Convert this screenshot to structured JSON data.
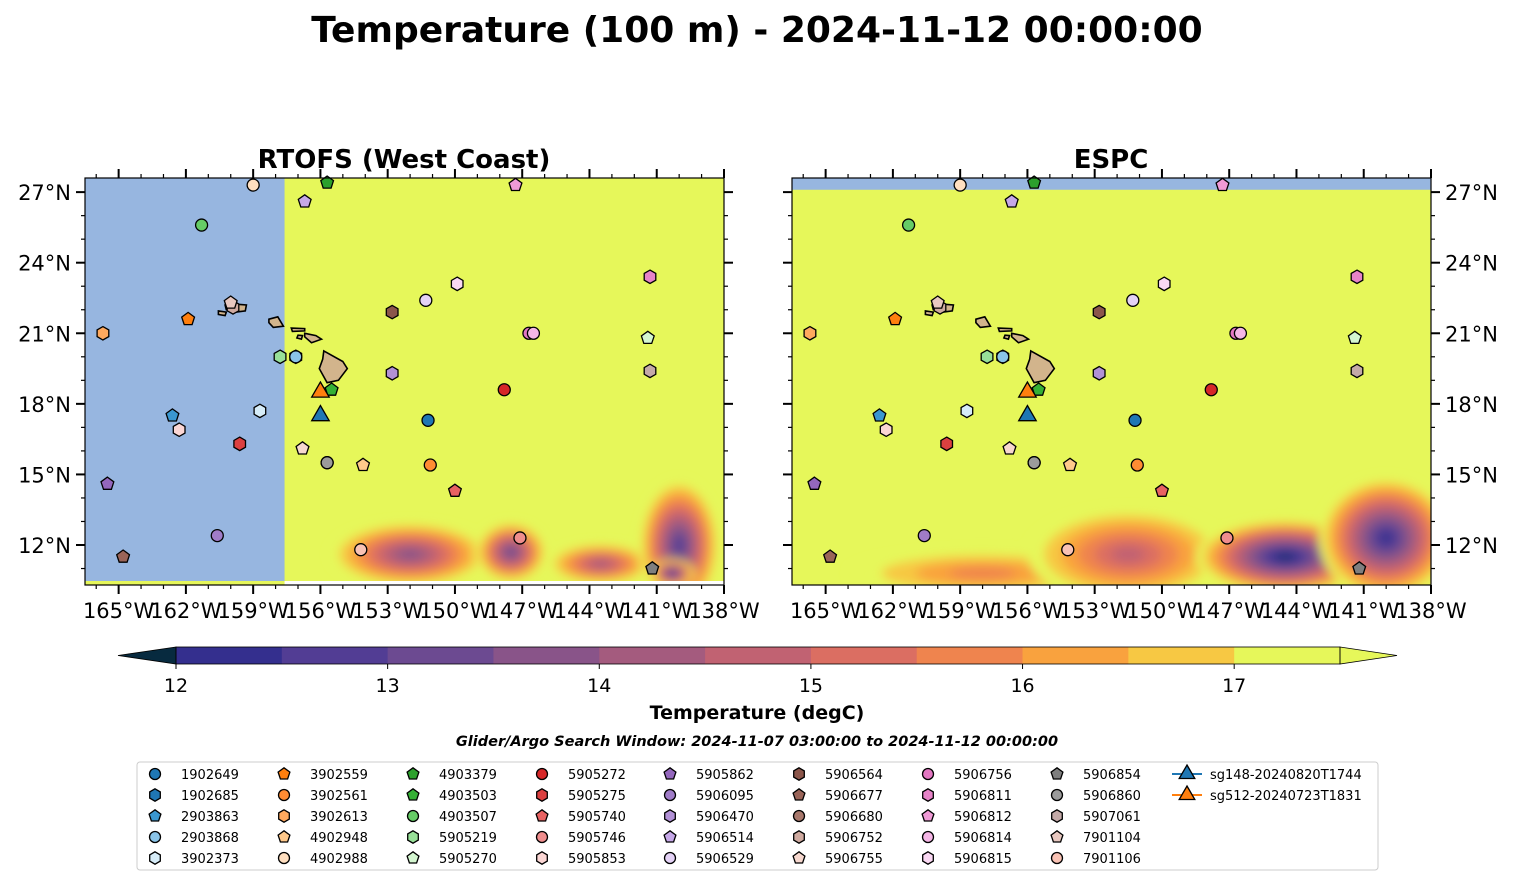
{
  "title": "Temperature (100 m) - 2024-11-12 00:00:00",
  "colormap": [
    "#072a3f",
    "#14306f",
    "#342f8e",
    "#523d94",
    "#6c4a91",
    "#895489",
    "#a45b7e",
    "#c16272",
    "#db6e62",
    "#ef844e",
    "#f9a23e",
    "#f7c843",
    "#e6f75a"
  ],
  "colors": {
    "land_mask": "#97b6e0",
    "land": "#d2b48c",
    "frame": "#000000"
  },
  "chart_data": [
    {
      "type": "heatmap",
      "title": "RTOFS (West Coast)",
      "xlim": [
        -166.5,
        -138
      ],
      "ylim": [
        10.3,
        27.6
      ],
      "xticks": [
        -165,
        -162,
        -159,
        -156,
        -153,
        -150,
        -147,
        -144,
        -141,
        -138
      ],
      "yticks": [
        12,
        15,
        18,
        21,
        24,
        27
      ],
      "xtick_labels": [
        "165°W",
        "162°W",
        "159°W",
        "156°W",
        "153°W",
        "150°W",
        "147°W",
        "144°W",
        "141°W",
        "138°W"
      ],
      "ytick_labels": [
        "12°N",
        "15°N",
        "18°N",
        "21°N",
        "24°N",
        "27°N"
      ],
      "yaxis_side": "left",
      "masked_west_of_lon": -157.6,
      "background_value": 17.8,
      "cold_patches": [
        {
          "lon": -152.0,
          "lat": 11.6,
          "rx": 3.6,
          "ry": 1.4,
          "value": 14.2
        },
        {
          "lon": -147.5,
          "lat": 11.7,
          "rx": 1.6,
          "ry": 1.3,
          "value": 13.6
        },
        {
          "lon": -143.5,
          "lat": 11.2,
          "rx": 2.4,
          "ry": 0.9,
          "value": 14.5
        },
        {
          "lon": -140.0,
          "lat": 12.0,
          "rx": 1.8,
          "ry": 2.8,
          "value": 13.0
        },
        {
          "lon": -140.3,
          "lat": 10.8,
          "rx": 1.0,
          "ry": 0.6,
          "value": 12.3
        }
      ]
    },
    {
      "type": "heatmap",
      "title": "ESPC",
      "xlim": [
        -166.5,
        -138
      ],
      "ylim": [
        10.3,
        27.6
      ],
      "xticks": [
        -165,
        -162,
        -159,
        -156,
        -153,
        -150,
        -147,
        -144,
        -141,
        -138
      ],
      "yticks": [
        12,
        15,
        18,
        21,
        24,
        27
      ],
      "xtick_labels": [
        "165°W",
        "162°W",
        "159°W",
        "156°W",
        "153°W",
        "150°W",
        "147°W",
        "144°W",
        "141°W",
        "138°W"
      ],
      "ytick_labels": [
        "12°N",
        "15°N",
        "18°N",
        "21°N",
        "24°N",
        "27°N"
      ],
      "yaxis_side": "right",
      "masked_north_of_lat": 27.1,
      "background_value": 17.8,
      "cold_patches": [
        {
          "lon": -158.0,
          "lat": 10.8,
          "rx": 6.0,
          "ry": 1.0,
          "value": 15.8
        },
        {
          "lon": -151.5,
          "lat": 11.6,
          "rx": 4.5,
          "ry": 2.0,
          "value": 14.8
        },
        {
          "lon": -144.5,
          "lat": 11.5,
          "rx": 4.0,
          "ry": 1.6,
          "value": 12.2
        },
        {
          "lon": -140.0,
          "lat": 12.3,
          "rx": 3.0,
          "ry": 2.6,
          "value": 12.6
        }
      ]
    }
  ],
  "floats": [
    {
      "id": "1902649",
      "marker": "circle",
      "color": "#1f77b4",
      "lon": -151.2,
      "lat": 17.3
    },
    {
      "id": "1902685",
      "marker": "hexagon",
      "color": "#1f77b4",
      "lon": -157.1,
      "lat": 20.0
    },
    {
      "id": "2903863",
      "marker": "pentagon",
      "color": "#3a97d0",
      "lon": -162.6,
      "lat": 17.5
    },
    {
      "id": "2903868",
      "marker": "circle",
      "color": "#8ac4e8",
      "lon": -157.1,
      "lat": 20.0
    },
    {
      "id": "3902373",
      "marker": "hexagon",
      "color": "#d6ecf8",
      "lon": -158.7,
      "lat": 17.7
    },
    {
      "id": "3902559",
      "marker": "pentagon",
      "color": "#ff7f0e",
      "lon": -161.9,
      "lat": 21.6
    },
    {
      "id": "3902561",
      "marker": "circle",
      "color": "#ff8c33",
      "lon": -151.1,
      "lat": 15.4
    },
    {
      "id": "3902613",
      "marker": "hexagon",
      "color": "#ffa95e",
      "lon": -165.7,
      "lat": 21.0
    },
    {
      "id": "4902948",
      "marker": "pentagon",
      "color": "#ffc98b",
      "lon": -154.1,
      "lat": 15.4
    },
    {
      "id": "4902988",
      "marker": "circle",
      "color": "#ffdfc0",
      "lon": -159.0,
      "lat": 27.3
    },
    {
      "id": "4903379",
      "marker": "pentagon",
      "color": "#2ca02c",
      "lon": -155.7,
      "lat": 27.4
    },
    {
      "id": "4903503",
      "marker": "pentagon",
      "color": "#35b035",
      "lon": -155.5,
      "lat": 18.6
    },
    {
      "id": "4903507",
      "marker": "circle",
      "color": "#66cc66",
      "lon": -161.3,
      "lat": 25.6
    },
    {
      "id": "5905219",
      "marker": "hexagon",
      "color": "#98e098",
      "lon": -157.8,
      "lat": 20.0
    },
    {
      "id": "5905270",
      "marker": "pentagon",
      "color": "#d4f6d0",
      "lon": -141.4,
      "lat": 20.8
    },
    {
      "id": "5905272",
      "marker": "circle",
      "color": "#d62728",
      "lon": -147.8,
      "lat": 18.6
    },
    {
      "id": "5905275",
      "marker": "hexagon",
      "color": "#dc4040",
      "lon": -159.6,
      "lat": 16.3
    },
    {
      "id": "5905740",
      "marker": "pentagon",
      "color": "#e86262",
      "lon": -150.0,
      "lat": 14.3
    },
    {
      "id": "5905746",
      "marker": "circle",
      "color": "#ef8d8d",
      "lon": -147.1,
      "lat": 12.3
    },
    {
      "id": "5905853",
      "marker": "hexagon",
      "color": "#fbd6d4",
      "lon": -162.3,
      "lat": 16.9
    },
    {
      "id": "5905862",
      "marker": "pentagon",
      "color": "#9467bd",
      "lon": -165.5,
      "lat": 14.6
    },
    {
      "id": "5906095",
      "marker": "circle",
      "color": "#a07cc8",
      "lon": -160.6,
      "lat": 12.4
    },
    {
      "id": "5906470",
      "marker": "hexagon",
      "color": "#b291d6",
      "lon": -152.8,
      "lat": 19.3
    },
    {
      "id": "5906514",
      "marker": "pentagon",
      "color": "#c6a8e8",
      "lon": -156.7,
      "lat": 26.6
    },
    {
      "id": "5906529",
      "marker": "circle",
      "color": "#e4d2f6",
      "lon": -151.3,
      "lat": 22.4
    },
    {
      "id": "5906564",
      "marker": "hexagon",
      "color": "#8c564b",
      "lon": -152.8,
      "lat": 21.9
    },
    {
      "id": "5906677",
      "marker": "pentagon",
      "color": "#9a6458",
      "lon": -164.8,
      "lat": 11.5
    },
    {
      "id": "5906680",
      "marker": "circle",
      "color": "#a8786c",
      "lon": -155.7,
      "lat": 15.5
    },
    {
      "id": "5906752",
      "marker": "hexagon",
      "color": "#cfaaa0",
      "lon": -159.9,
      "lat": 22.1
    },
    {
      "id": "5906755",
      "marker": "pentagon",
      "color": "#f7d8cf",
      "lon": -156.8,
      "lat": 16.1
    },
    {
      "id": "5906756",
      "marker": "circle",
      "color": "#e377c2",
      "lon": -146.7,
      "lat": 21.0
    },
    {
      "id": "5906811",
      "marker": "hexagon",
      "color": "#e783c8",
      "lon": -141.3,
      "lat": 23.4
    },
    {
      "id": "5906812",
      "marker": "pentagon",
      "color": "#f09ad6",
      "lon": -147.3,
      "lat": 27.3
    },
    {
      "id": "5906814",
      "marker": "circle",
      "color": "#f5b6e6",
      "lon": -146.5,
      "lat": 21.0
    },
    {
      "id": "5906815",
      "marker": "hexagon",
      "color": "#fad8f3",
      "lon": -149.9,
      "lat": 23.1
    },
    {
      "id": "5906854",
      "marker": "pentagon",
      "color": "#7f7f7f",
      "lon": -141.2,
      "lat": 11.0
    },
    {
      "id": "5906860",
      "marker": "circle",
      "color": "#9b9b9b",
      "lon": -155.7,
      "lat": 15.5
    },
    {
      "id": "5907061",
      "marker": "hexagon",
      "color": "#c4aaa8",
      "lon": -141.3,
      "lat": 19.4
    },
    {
      "id": "7901104",
      "marker": "pentagon",
      "color": "#e8c8c0",
      "lon": -160.0,
      "lat": 22.3
    },
    {
      "id": "7901106",
      "marker": "circle",
      "color": "#f9c2b4",
      "lon": -154.2,
      "lat": 11.8
    }
  ],
  "gliders": [
    {
      "id": "sg148-20240820T1744",
      "marker": "triangle",
      "color": "#1f77b4",
      "lon": -156.0,
      "lat": 17.5
    },
    {
      "id": "sg512-20240723T1831",
      "marker": "triangle",
      "color": "#ff7f0e",
      "lon": -156.0,
      "lat": 18.5
    }
  ],
  "colorbar": {
    "label": "Temperature (degC)",
    "min": 11.5,
    "max": 17.5,
    "ticks": [
      12,
      13,
      14,
      15,
      16,
      17
    ],
    "tick_labels": [
      "12",
      "13",
      "14",
      "15",
      "16",
      "17"
    ]
  },
  "search_window": "Glider/Argo Search Window: 2024-11-07 03:00:00 to 2024-11-12 00:00:00"
}
